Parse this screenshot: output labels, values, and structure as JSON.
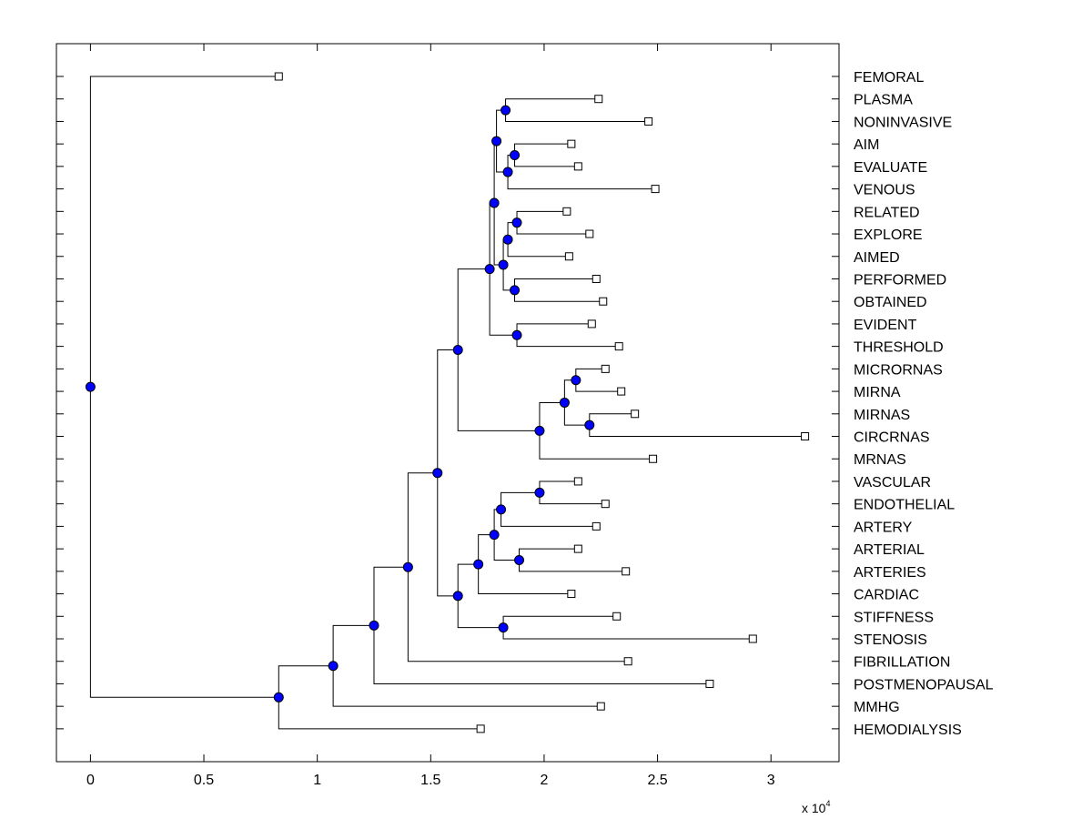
{
  "chart_data": {
    "type": "dendrogram",
    "xlim": [
      -0.15,
      3.3
    ],
    "x_exponent_label": "x 10",
    "x_exponent": "4",
    "xticks": [
      {
        "value": 0,
        "label": "0"
      },
      {
        "value": 0.5,
        "label": "0.5"
      },
      {
        "value": 1,
        "label": "1"
      },
      {
        "value": 1.5,
        "label": "1.5"
      },
      {
        "value": 2,
        "label": "2"
      },
      {
        "value": 2.5,
        "label": "2.5"
      },
      {
        "value": 3,
        "label": "3"
      }
    ],
    "leaves": [
      {
        "label": "FEMORAL",
        "value": 0.83
      },
      {
        "label": "PLASMA",
        "value": 2.24
      },
      {
        "label": "NONINVASIVE",
        "value": 2.46
      },
      {
        "label": "AIM",
        "value": 2.12
      },
      {
        "label": "EVALUATE",
        "value": 2.15
      },
      {
        "label": "VENOUS",
        "value": 2.49
      },
      {
        "label": "RELATED",
        "value": 2.1
      },
      {
        "label": "EXPLORE",
        "value": 2.2
      },
      {
        "label": "AIMED",
        "value": 2.11
      },
      {
        "label": "PERFORMED",
        "value": 2.23
      },
      {
        "label": "OBTAINED",
        "value": 2.26
      },
      {
        "label": "EVIDENT",
        "value": 2.21
      },
      {
        "label": "THRESHOLD",
        "value": 2.33
      },
      {
        "label": "MICRORNAS",
        "value": 2.27
      },
      {
        "label": "MIRNA",
        "value": 2.34
      },
      {
        "label": "MIRNAS",
        "value": 2.4
      },
      {
        "label": "CIRCRNAS",
        "value": 3.15
      },
      {
        "label": "MRNAS",
        "value": 2.48
      },
      {
        "label": "VASCULAR",
        "value": 2.15
      },
      {
        "label": "ENDOTHELIAL",
        "value": 2.27
      },
      {
        "label": "ARTERY",
        "value": 2.23
      },
      {
        "label": "ARTERIAL",
        "value": 2.15
      },
      {
        "label": "ARTERIES",
        "value": 2.36
      },
      {
        "label": "CARDIAC",
        "value": 2.12
      },
      {
        "label": "STIFFNESS",
        "value": 2.32
      },
      {
        "label": "STENOSIS",
        "value": 2.92
      },
      {
        "label": "FIBRILLATION",
        "value": 2.37
      },
      {
        "label": "POSTMENOPAUSAL",
        "value": 2.73
      },
      {
        "label": "MMHG",
        "value": 2.25
      },
      {
        "label": "HEMODIALYSIS",
        "value": 1.72
      }
    ],
    "nodes": [
      {
        "value": 1.83,
        "children": [
          1,
          2
        ]
      },
      {
        "value": 1.87,
        "children": [
          3,
          4
        ]
      },
      {
        "value": 1.84,
        "children": [
          "n1",
          5
        ]
      },
      {
        "value": 1.79,
        "children": [
          "n0",
          "n2"
        ]
      },
      {
        "value": 1.88,
        "children": [
          6,
          7
        ]
      },
      {
        "value": 1.84,
        "children": [
          "n4",
          8
        ]
      },
      {
        "value": 1.87,
        "children": [
          9,
          10
        ]
      },
      {
        "value": 1.82,
        "children": [
          "n5",
          "n6"
        ]
      },
      {
        "value": 1.78,
        "children": [
          "n3",
          "n7"
        ]
      },
      {
        "value": 1.88,
        "children": [
          11,
          12
        ]
      },
      {
        "value": 1.76,
        "children": [
          "n8",
          "n9"
        ]
      },
      {
        "value": 2.14,
        "children": [
          13,
          14
        ]
      },
      {
        "value": 2.2,
        "children": [
          15,
          16
        ]
      },
      {
        "value": 2.09,
        "children": [
          "n11",
          "n12"
        ]
      },
      {
        "value": 1.98,
        "children": [
          "n13",
          17
        ]
      },
      {
        "value": 1.62,
        "children": [
          "n10",
          "n14"
        ]
      },
      {
        "value": 1.98,
        "children": [
          18,
          19
        ]
      },
      {
        "value": 1.81,
        "children": [
          "n16",
          20
        ]
      },
      {
        "value": 1.89,
        "children": [
          21,
          22
        ]
      },
      {
        "value": 1.78,
        "children": [
          "n17",
          "n18"
        ]
      },
      {
        "value": 1.71,
        "children": [
          "n19",
          23
        ]
      },
      {
        "value": 1.82,
        "children": [
          24,
          25
        ]
      },
      {
        "value": 1.62,
        "children": [
          "n20",
          "n21"
        ]
      },
      {
        "value": 1.53,
        "children": [
          "n15",
          "n22"
        ]
      },
      {
        "value": 1.4,
        "children": [
          "n23",
          26
        ]
      },
      {
        "value": 1.25,
        "children": [
          "n24",
          27
        ]
      },
      {
        "value": 1.07,
        "children": [
          "n25",
          28
        ]
      },
      {
        "value": 0.83,
        "children": [
          "n26",
          29
        ]
      },
      {
        "value": 0.0,
        "children": [
          0,
          "n27"
        ]
      }
    ]
  }
}
